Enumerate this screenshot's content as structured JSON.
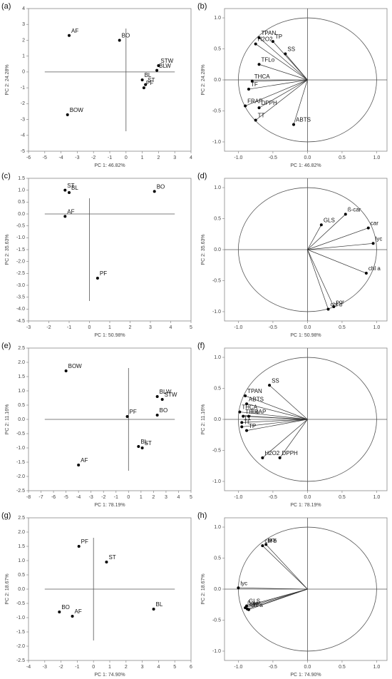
{
  "chart_data": [
    {
      "type": "scatter",
      "label": "(a)",
      "xlabel": "PC 1: 46.82%",
      "ylabel": "PC 2: 24.28%",
      "color": "#000000",
      "categories": [
        "AF",
        "BO",
        "STW",
        "BLW",
        "BL",
        "ST",
        "PF",
        "BOW"
      ],
      "x": [
        -3.5,
        -0.4,
        2.0,
        1.9,
        1.0,
        1.2,
        1.1,
        -3.6
      ],
      "values": [
        2.3,
        2.0,
        0.4,
        0.1,
        -0.5,
        -0.8,
        -1.0,
        -2.7
      ],
      "xlim": [
        -6,
        4
      ],
      "xticks": [
        -6,
        -5,
        -4,
        -3,
        -2,
        -1,
        0,
        1,
        2,
        3,
        4
      ],
      "ylim": [
        -5,
        4
      ],
      "yticks": [
        -5,
        -4,
        -3,
        -2,
        -1,
        0,
        1,
        2,
        3,
        4
      ]
    },
    {
      "type": "vector",
      "label": "(b)",
      "xlabel": "PC 1: 46.82%",
      "ylabel": "PC 2: 24.28%",
      "color": "#000000",
      "categories": [
        "TPAN",
        "TP",
        "H2O2",
        "SS",
        "TFLo",
        "THCA",
        "TF",
        "FRAP",
        "DPPH",
        "TT",
        "ABTS"
      ],
      "x": [
        -0.7,
        -0.5,
        -0.75,
        -0.32,
        -0.7,
        -0.8,
        -0.85,
        -0.9,
        -0.7,
        -0.75,
        -0.2
      ],
      "values": [
        0.68,
        0.62,
        0.58,
        0.42,
        0.25,
        -0.02,
        -0.15,
        -0.42,
        -0.45,
        -0.65,
        -0.72
      ],
      "xlim": [
        -1.2,
        1.15
      ],
      "xticks": [
        {
          "value": -1,
          "label": "-1.0"
        },
        -0.5,
        {
          "value": 0,
          "label": "0.0"
        },
        0.5,
        {
          "value": 1,
          "label": "1.0"
        }
      ],
      "ylim": [
        -1.15,
        1.15
      ],
      "yticks": [
        {
          "value": -1,
          "label": "-1.0"
        },
        -0.5,
        {
          "value": 0,
          "label": "0.0"
        },
        0.5,
        {
          "value": 1,
          "label": "1.0"
        }
      ]
    },
    {
      "type": "scatter",
      "label": "(c)",
      "xlabel": "PC 1: 50.98%",
      "ylabel": "PC 2: 35.63%",
      "color": "#000000",
      "categories": [
        "ST",
        "BL",
        "AF",
        "BO",
        "PF"
      ],
      "x": [
        -1.2,
        -1.0,
        -1.2,
        3.2,
        0.4
      ],
      "values": [
        1.0,
        0.9,
        -0.1,
        0.95,
        -2.7
      ],
      "xlim": [
        -3,
        5
      ],
      "xticks": [
        -3,
        -2,
        -1,
        0,
        1,
        2,
        3,
        4,
        5
      ],
      "ylim": [
        -4.5,
        1.5
      ],
      "yticks": [
        -4.5,
        {
          "value": -4,
          "label": "-4.0"
        },
        -3.5,
        {
          "value": -3,
          "label": "-3.0"
        },
        -2.5,
        {
          "value": -2,
          "label": "-2.0"
        },
        -1.5,
        {
          "value": -1,
          "label": "-1.0"
        },
        -0.5,
        {
          "value": 0,
          "label": "0.0"
        },
        0.5,
        {
          "value": 1,
          "label": "1.0"
        },
        1.5
      ]
    },
    {
      "type": "vector",
      "label": "(d)",
      "xlabel": "PC 1: 50.98%",
      "ylabel": "PC 2: 35.63%",
      "color": "#000000",
      "categories": [
        "GLS",
        "ß-car",
        "car",
        "lyc",
        "chl a",
        "por",
        "chl b"
      ],
      "x": [
        0.2,
        0.55,
        0.88,
        0.95,
        0.85,
        0.38,
        0.3
      ],
      "values": [
        0.4,
        0.57,
        0.35,
        0.1,
        -0.38,
        -0.92,
        -0.96
      ],
      "xlim": [
        -1.2,
        1.15
      ],
      "xticks": [
        {
          "value": -1,
          "label": "-1.0"
        },
        -0.5,
        {
          "value": 0,
          "label": "0.0"
        },
        0.5,
        {
          "value": 1,
          "label": "1.0"
        }
      ],
      "ylim": [
        -1.15,
        1.15
      ],
      "yticks": [
        {
          "value": -1,
          "label": "-1.0"
        },
        -0.5,
        {
          "value": 0,
          "label": "0.0"
        },
        0.5,
        {
          "value": 1,
          "label": "1.0"
        }
      ]
    },
    {
      "type": "scatter",
      "label": "(e)",
      "xlabel": "PC 1: 78.19%",
      "ylabel": "PC 2: 11.16%",
      "color": "#000000",
      "categories": [
        "BOW",
        "BLW",
        "STW",
        "PF",
        "BO",
        "BL",
        "ST",
        "AF"
      ],
      "x": [
        -5,
        2.3,
        2.7,
        -0.1,
        2.3,
        0.8,
        1.1,
        -4
      ],
      "values": [
        1.7,
        0.8,
        0.7,
        0.1,
        0.15,
        -0.95,
        -1.0,
        -1.6
      ],
      "xlim": [
        -8,
        5
      ],
      "xticks": [
        -8,
        -7,
        -6,
        -5,
        -4,
        -3,
        -2,
        -1,
        0,
        1,
        2,
        3,
        4,
        5
      ],
      "ylim": [
        -2.5,
        2.5
      ],
      "yticks": [
        -2.5,
        {
          "value": -2,
          "label": "-2.0"
        },
        -1.5,
        {
          "value": -1,
          "label": "-1.0"
        },
        -0.5,
        {
          "value": 0,
          "label": "0.0"
        },
        0.5,
        {
          "value": 1,
          "label": "1.0"
        },
        1.5,
        {
          "value": 2,
          "label": "2.0"
        },
        2.5
      ]
    },
    {
      "type": "vector",
      "label": "(f)",
      "xlabel": "PC 1: 78.19%",
      "ylabel": "PC 2: 11.16%",
      "color": "#000000",
      "categories": [
        "SS",
        "TPAN",
        "ABTS",
        "THCA",
        "TFLo",
        "FRAP",
        "TT",
        "TF",
        "TP",
        "H2O2",
        "DPPH"
      ],
      "x": [
        -0.55,
        -0.9,
        -0.88,
        -0.98,
        -0.93,
        -0.85,
        -0.95,
        -0.95,
        -0.88,
        -0.65,
        -0.4
      ],
      "values": [
        0.55,
        0.38,
        0.25,
        0.12,
        0.05,
        0.05,
        -0.05,
        -0.12,
        -0.18,
        -0.62,
        -0.62
      ],
      "xlim": [
        -1.2,
        1.15
      ],
      "xticks": [
        {
          "value": -1,
          "label": "-1.0"
        },
        -0.5,
        {
          "value": 0,
          "label": "0.0"
        },
        0.5,
        {
          "value": 1,
          "label": "1.0"
        }
      ],
      "ylim": [
        -1.15,
        1.15
      ],
      "yticks": [
        {
          "value": -1,
          "label": "-1.0"
        },
        -0.5,
        {
          "value": 0,
          "label": "0.0"
        },
        0.5,
        {
          "value": 1,
          "label": "1.0"
        }
      ]
    },
    {
      "type": "scatter",
      "label": "(g)",
      "xlabel": "PC 1: 74.90%",
      "ylabel": "PC 2: 18.67%",
      "color": "#000000",
      "categories": [
        "PF",
        "ST",
        "BO",
        "AF",
        "BL"
      ],
      "x": [
        -0.9,
        0.8,
        -2.1,
        -1.3,
        3.7
      ],
      "values": [
        1.5,
        0.95,
        -0.8,
        -0.95,
        -0.7
      ],
      "xlim": [
        -4,
        6
      ],
      "xticks": [
        -4,
        -3,
        -2,
        -1,
        0,
        1,
        2,
        3,
        4,
        5,
        6
      ],
      "ylim": [
        -2.5,
        2.5
      ],
      "yticks": [
        -2.5,
        {
          "value": -2,
          "label": "-2.0"
        },
        -1.5,
        {
          "value": -1,
          "label": "-1.0"
        },
        -0.5,
        {
          "value": 0,
          "label": "0.0"
        },
        0.5,
        {
          "value": 1,
          "label": "1.0"
        },
        1.5,
        {
          "value": 2,
          "label": "2.0"
        },
        2.5
      ]
    },
    {
      "type": "vector",
      "label": "(h)",
      "xlabel": "PC 1: 74.90%",
      "ylabel": "PC 2: 18.67%",
      "color": "#000000",
      "categories": [
        "por",
        "chl b",
        "lyc",
        "GLS",
        "ß-car",
        "car",
        "chl a"
      ],
      "x": [
        -0.6,
        -0.65,
        -1.0,
        -0.88,
        -0.9,
        -0.87,
        -0.85
      ],
      "values": [
        0.72,
        0.7,
        0.02,
        -0.27,
        -0.3,
        -0.32,
        -0.33
      ],
      "xlim": [
        -1.2,
        1.15
      ],
      "xticks": [
        {
          "value": -1,
          "label": "-1.0"
        },
        -0.5,
        {
          "value": 0,
          "label": "0.0"
        },
        0.5,
        {
          "value": 1,
          "label": "1.0"
        }
      ],
      "ylim": [
        -1.15,
        1.15
      ],
      "yticks": [
        {
          "value": -1,
          "label": "-1.0"
        },
        -0.5,
        {
          "value": 0,
          "label": "0.0"
        },
        0.5,
        {
          "value": 1,
          "label": "1.0"
        }
      ]
    }
  ]
}
